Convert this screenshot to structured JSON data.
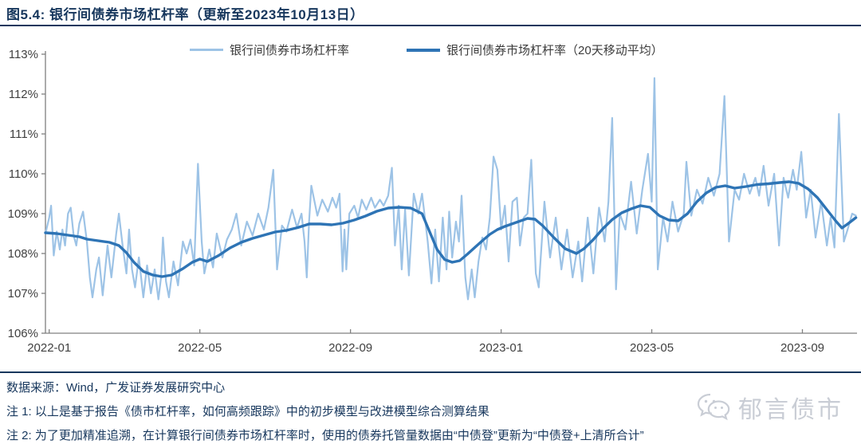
{
  "title": "图5.4:  银行间债券市场杠杆率（更新至2023年10月13日）",
  "legend": {
    "items": [
      {
        "label": "银行间债券市场杠杆率",
        "color": "#9DC3E6"
      },
      {
        "label": "银行间债券市场杠杆率（20天移动平均）",
        "color": "#2E74B5"
      }
    ]
  },
  "footer": {
    "source": "数据来源：Wind，广发证券发展研究中心",
    "note1": "注 1: 以上是基于报告《债市杠杆率，如何高频跟踪》中的初步模型与改进模型综合测算结果",
    "note2": "注 2: 为了更加精准追溯，在计算银行间债券市场杠杆率时，使用的债券托管量数据由“中债登”更新为“中债登+上清所合计”"
  },
  "watermark": {
    "icon": "wechat-icon",
    "label": "郁言债市"
  },
  "colors": {
    "accent_navy": "#17375D",
    "daily_line": "#9DC3E6",
    "ma_line": "#2E74B5",
    "axis": "#808080",
    "tick_text": "#404040",
    "watermark_gray": "#c9cdd5"
  },
  "chart_data": {
    "type": "line",
    "x_unit": "months since 2022-01-01",
    "xlim_months": [
      -0.1,
      21.45
    ],
    "ylim": [
      106,
      113
    ],
    "grid": false,
    "legend_position": "top-center",
    "y_ticks": [
      {
        "v": 113,
        "label": "113%"
      },
      {
        "v": 112,
        "label": "112%"
      },
      {
        "v": 111,
        "label": "111%"
      },
      {
        "v": 110,
        "label": "110%"
      },
      {
        "v": 109,
        "label": "109%"
      },
      {
        "v": 108,
        "label": "108%"
      },
      {
        "v": 107,
        "label": "107%"
      },
      {
        "v": 106,
        "label": "106%"
      }
    ],
    "x_ticks": [
      {
        "m": 0,
        "label": "2022-01"
      },
      {
        "m": 4,
        "label": "2022-05"
      },
      {
        "m": 8,
        "label": "2022-09"
      },
      {
        "m": 12,
        "label": "2023-01"
      },
      {
        "m": 16,
        "label": "2023-05"
      },
      {
        "m": 20,
        "label": "2023-09"
      }
    ],
    "series": [
      {
        "name": "银行间债券市场杠杆率",
        "color": "#9DC3E6",
        "width": 2.2,
        "points": [
          [
            -0.1,
            108.5
          ],
          [
            0.0,
            108.9
          ],
          [
            0.05,
            109.2
          ],
          [
            0.12,
            107.95
          ],
          [
            0.2,
            108.55
          ],
          [
            0.28,
            108.1
          ],
          [
            0.35,
            108.6
          ],
          [
            0.42,
            108.2
          ],
          [
            0.5,
            109.0
          ],
          [
            0.57,
            109.15
          ],
          [
            0.65,
            108.45
          ],
          [
            0.72,
            108.2
          ],
          [
            0.8,
            108.75
          ],
          [
            0.9,
            109.05
          ],
          [
            1.0,
            108.3
          ],
          [
            1.08,
            107.4
          ],
          [
            1.15,
            106.9
          ],
          [
            1.25,
            107.6
          ],
          [
            1.32,
            107.9
          ],
          [
            1.42,
            106.95
          ],
          [
            1.55,
            108.2
          ],
          [
            1.65,
            107.4
          ],
          [
            1.78,
            108.5
          ],
          [
            1.85,
            109.0
          ],
          [
            1.95,
            108.2
          ],
          [
            2.05,
            107.5
          ],
          [
            2.12,
            108.6
          ],
          [
            2.2,
            107.6
          ],
          [
            2.28,
            107.15
          ],
          [
            2.38,
            107.9
          ],
          [
            2.5,
            106.9
          ],
          [
            2.6,
            107.7
          ],
          [
            2.7,
            107.0
          ],
          [
            2.8,
            107.6
          ],
          [
            2.9,
            106.85
          ],
          [
            2.97,
            107.4
          ],
          [
            3.02,
            108.4
          ],
          [
            3.1,
            107.3
          ],
          [
            3.18,
            106.9
          ],
          [
            3.3,
            107.8
          ],
          [
            3.42,
            107.2
          ],
          [
            3.55,
            108.3
          ],
          [
            3.65,
            108.0
          ],
          [
            3.75,
            108.35
          ],
          [
            3.85,
            107.7
          ],
          [
            3.95,
            110.25
          ],
          [
            4.05,
            108.3
          ],
          [
            4.12,
            107.5
          ],
          [
            4.25,
            108.1
          ],
          [
            4.35,
            107.65
          ],
          [
            4.45,
            108.5
          ],
          [
            4.6,
            107.9
          ],
          [
            4.72,
            108.35
          ],
          [
            4.85,
            108.6
          ],
          [
            4.97,
            109.0
          ],
          [
            5.1,
            108.2
          ],
          [
            5.25,
            108.8
          ],
          [
            5.4,
            108.45
          ],
          [
            5.55,
            109.0
          ],
          [
            5.7,
            108.6
          ],
          [
            5.82,
            109.15
          ],
          [
            5.95,
            110.1
          ],
          [
            6.05,
            107.6
          ],
          [
            6.18,
            108.7
          ],
          [
            6.3,
            108.55
          ],
          [
            6.45,
            109.1
          ],
          [
            6.58,
            108.65
          ],
          [
            6.7,
            109.0
          ],
          [
            6.78,
            108.3
          ],
          [
            6.84,
            107.4
          ],
          [
            6.9,
            108.8
          ],
          [
            6.96,
            109.7
          ],
          [
            7.12,
            108.95
          ],
          [
            7.25,
            109.35
          ],
          [
            7.4,
            109.05
          ],
          [
            7.52,
            109.4
          ],
          [
            7.62,
            109.15
          ],
          [
            7.71,
            109.5
          ],
          [
            7.79,
            107.55
          ],
          [
            7.84,
            108.6
          ],
          [
            7.89,
            107.6
          ],
          [
            7.97,
            109.0
          ],
          [
            8.1,
            109.2
          ],
          [
            8.2,
            108.9
          ],
          [
            8.3,
            109.35
          ],
          [
            8.42,
            109.1
          ],
          [
            8.55,
            109.4
          ],
          [
            8.65,
            109.15
          ],
          [
            8.78,
            109.35
          ],
          [
            8.88,
            109.2
          ],
          [
            9.0,
            109.45
          ],
          [
            9.1,
            110.15
          ],
          [
            9.18,
            108.2
          ],
          [
            9.28,
            109.2
          ],
          [
            9.36,
            107.6
          ],
          [
            9.45,
            109.1
          ],
          [
            9.55,
            107.45
          ],
          [
            9.68,
            109.5
          ],
          [
            9.8,
            109.0
          ],
          [
            9.9,
            109.5
          ],
          [
            10.05,
            108.3
          ],
          [
            10.15,
            107.25
          ],
          [
            10.25,
            108.6
          ],
          [
            10.35,
            107.3
          ],
          [
            10.45,
            108.9
          ],
          [
            10.55,
            107.6
          ],
          [
            10.62,
            109.05
          ],
          [
            10.7,
            107.9
          ],
          [
            10.8,
            108.8
          ],
          [
            10.88,
            108.3
          ],
          [
            10.95,
            109.45
          ],
          [
            11.05,
            107.4
          ],
          [
            11.12,
            106.85
          ],
          [
            11.22,
            107.6
          ],
          [
            11.3,
            106.9
          ],
          [
            11.4,
            107.8
          ],
          [
            11.5,
            108.4
          ],
          [
            11.6,
            108.1
          ],
          [
            11.7,
            108.9
          ],
          [
            11.8,
            110.43
          ],
          [
            11.9,
            110.1
          ],
          [
            12.0,
            108.6
          ],
          [
            12.1,
            109.2
          ],
          [
            12.2,
            107.8
          ],
          [
            12.3,
            109.3
          ],
          [
            12.42,
            109.4
          ],
          [
            12.5,
            108.2
          ],
          [
            12.6,
            108.9
          ],
          [
            12.7,
            109.0
          ],
          [
            12.8,
            110.35
          ],
          [
            12.92,
            107.5
          ],
          [
            13.0,
            107.15
          ],
          [
            13.15,
            109.3
          ],
          [
            13.3,
            107.9
          ],
          [
            13.45,
            108.9
          ],
          [
            13.6,
            107.6
          ],
          [
            13.75,
            108.6
          ],
          [
            13.9,
            107.4
          ],
          [
            14.05,
            108.3
          ],
          [
            14.15,
            107.3
          ],
          [
            14.3,
            108.9
          ],
          [
            14.45,
            107.5
          ],
          [
            14.6,
            109.15
          ],
          [
            14.75,
            108.3
          ],
          [
            14.85,
            109.3
          ],
          [
            14.95,
            111.4
          ],
          [
            15.05,
            107.1
          ],
          [
            15.15,
            109.0
          ],
          [
            15.3,
            108.6
          ],
          [
            15.45,
            109.8
          ],
          [
            15.6,
            108.5
          ],
          [
            15.75,
            109.6
          ],
          [
            15.9,
            110.5
          ],
          [
            16.0,
            109.3
          ],
          [
            16.07,
            112.4
          ],
          [
            16.16,
            107.6
          ],
          [
            16.3,
            108.9
          ],
          [
            16.42,
            108.3
          ],
          [
            16.55,
            109.3
          ],
          [
            16.7,
            108.55
          ],
          [
            16.85,
            109.0
          ],
          [
            16.92,
            110.3
          ],
          [
            17.05,
            108.95
          ],
          [
            17.2,
            109.6
          ],
          [
            17.35,
            109.25
          ],
          [
            17.5,
            109.9
          ],
          [
            17.65,
            109.45
          ],
          [
            17.8,
            110.0
          ],
          [
            17.93,
            111.95
          ],
          [
            18.05,
            108.3
          ],
          [
            18.2,
            109.6
          ],
          [
            18.32,
            109.35
          ],
          [
            18.45,
            110.0
          ],
          [
            18.6,
            109.5
          ],
          [
            18.75,
            109.9
          ],
          [
            18.85,
            109.45
          ],
          [
            18.97,
            110.2
          ],
          [
            19.1,
            109.2
          ],
          [
            19.25,
            110.0
          ],
          [
            19.38,
            108.2
          ],
          [
            19.5,
            109.9
          ],
          [
            19.62,
            109.4
          ],
          [
            19.75,
            110.1
          ],
          [
            19.85,
            109.6
          ],
          [
            19.97,
            110.55
          ],
          [
            20.1,
            108.9
          ],
          [
            20.22,
            109.6
          ],
          [
            20.35,
            108.4
          ],
          [
            20.5,
            109.3
          ],
          [
            20.65,
            108.2
          ],
          [
            20.75,
            108.9
          ],
          [
            20.85,
            108.15
          ],
          [
            20.97,
            111.5
          ],
          [
            21.1,
            108.3
          ],
          [
            21.2,
            108.6
          ],
          [
            21.32,
            109.0
          ],
          [
            21.42,
            108.95
          ]
        ]
      },
      {
        "name": "银行间债券市场杠杆率（20天移动平均）",
        "color": "#2E74B5",
        "width": 3.4,
        "points": [
          [
            -0.1,
            108.52
          ],
          [
            0.2,
            108.5
          ],
          [
            0.5,
            108.46
          ],
          [
            0.8,
            108.42
          ],
          [
            1.0,
            108.36
          ],
          [
            1.3,
            108.32
          ],
          [
            1.6,
            108.28
          ],
          [
            1.85,
            108.2
          ],
          [
            2.05,
            108.02
          ],
          [
            2.25,
            107.78
          ],
          [
            2.5,
            107.55
          ],
          [
            2.75,
            107.46
          ],
          [
            3.0,
            107.42
          ],
          [
            3.25,
            107.46
          ],
          [
            3.55,
            107.62
          ],
          [
            3.8,
            107.78
          ],
          [
            4.0,
            107.86
          ],
          [
            4.2,
            107.8
          ],
          [
            4.5,
            107.95
          ],
          [
            4.8,
            108.14
          ],
          [
            5.1,
            108.28
          ],
          [
            5.4,
            108.38
          ],
          [
            5.7,
            108.46
          ],
          [
            6.0,
            108.54
          ],
          [
            6.3,
            108.58
          ],
          [
            6.6,
            108.65
          ],
          [
            6.9,
            108.74
          ],
          [
            7.2,
            108.74
          ],
          [
            7.5,
            108.72
          ],
          [
            7.8,
            108.76
          ],
          [
            8.1,
            108.84
          ],
          [
            8.4,
            108.94
          ],
          [
            8.7,
            109.06
          ],
          [
            9.0,
            109.14
          ],
          [
            9.3,
            109.16
          ],
          [
            9.6,
            109.14
          ],
          [
            9.9,
            109.0
          ],
          [
            10.1,
            108.55
          ],
          [
            10.3,
            108.1
          ],
          [
            10.5,
            107.85
          ],
          [
            10.7,
            107.78
          ],
          [
            10.9,
            107.82
          ],
          [
            11.1,
            107.98
          ],
          [
            11.3,
            108.15
          ],
          [
            11.5,
            108.32
          ],
          [
            11.7,
            108.48
          ],
          [
            11.9,
            108.6
          ],
          [
            12.1,
            108.68
          ],
          [
            12.4,
            108.78
          ],
          [
            12.7,
            108.88
          ],
          [
            12.9,
            108.86
          ],
          [
            13.1,
            108.7
          ],
          [
            13.4,
            108.4
          ],
          [
            13.7,
            108.12
          ],
          [
            14.0,
            108.0
          ],
          [
            14.2,
            108.12
          ],
          [
            14.45,
            108.35
          ],
          [
            14.7,
            108.62
          ],
          [
            14.95,
            108.85
          ],
          [
            15.2,
            109.02
          ],
          [
            15.45,
            109.12
          ],
          [
            15.7,
            109.2
          ],
          [
            15.95,
            109.16
          ],
          [
            16.2,
            108.95
          ],
          [
            16.45,
            108.84
          ],
          [
            16.7,
            108.82
          ],
          [
            16.95,
            109.0
          ],
          [
            17.2,
            109.3
          ],
          [
            17.45,
            109.52
          ],
          [
            17.7,
            109.66
          ],
          [
            17.95,
            109.7
          ],
          [
            18.2,
            109.64
          ],
          [
            18.5,
            109.68
          ],
          [
            18.8,
            109.73
          ],
          [
            19.1,
            109.75
          ],
          [
            19.4,
            109.78
          ],
          [
            19.65,
            109.8
          ],
          [
            19.9,
            109.76
          ],
          [
            20.15,
            109.62
          ],
          [
            20.4,
            109.4
          ],
          [
            20.65,
            109.1
          ],
          [
            20.9,
            108.8
          ],
          [
            21.05,
            108.64
          ],
          [
            21.2,
            108.74
          ],
          [
            21.42,
            108.9
          ]
        ]
      }
    ]
  }
}
